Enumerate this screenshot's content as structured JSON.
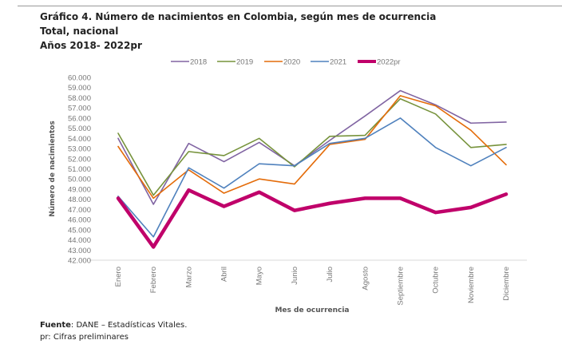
{
  "header": {
    "title": "Gráfico 4. Número de nacimientos en Colombia, según mes de ocurrencia",
    "subtitle1": "Total, nacional",
    "subtitle2": "Años 2018- 2022pr"
  },
  "footer": {
    "source_label": "Fuente",
    "source_text": ": DANE – Estadísticas Vitales.",
    "note": "pr: Cifras preliminares"
  },
  "chart_data": {
    "type": "line",
    "xlabel": "Mes de ocurrencia",
    "ylabel": "Número de nacimientos",
    "ylim": [
      42000,
      60000
    ],
    "ytick_step": 1000,
    "grid": false,
    "legend_position": "top",
    "categories": [
      "Enero",
      "Febrero",
      "Marzo",
      "Abril",
      "Mayo",
      "Junio",
      "Julio",
      "Agosto",
      "Septiembre",
      "Octubre",
      "Noviembre",
      "Diciembre"
    ],
    "series": [
      {
        "name": "2018",
        "color": "#8064A2",
        "values": [
          54000,
          47500,
          53500,
          51700,
          53600,
          51300,
          53800,
          56200,
          58700,
          57300,
          55500,
          55600
        ]
      },
      {
        "name": "2019",
        "color": "#77933C",
        "values": [
          54500,
          48400,
          52700,
          52300,
          54000,
          51200,
          54200,
          54300,
          57900,
          56400,
          53100,
          53400
        ]
      },
      {
        "name": "2020",
        "color": "#E46C0A",
        "values": [
          53200,
          48100,
          50900,
          48600,
          50000,
          49500,
          53400,
          53900,
          58200,
          57200,
          54800,
          51400
        ]
      },
      {
        "name": "2021",
        "color": "#4F81BD",
        "values": [
          48300,
          44300,
          51100,
          49100,
          51500,
          51300,
          53500,
          54000,
          56000,
          53100,
          51300,
          53100
        ]
      },
      {
        "name": "2022pr",
        "color": "#C0006A",
        "values": [
          48100,
          43300,
          48900,
          47300,
          48700,
          46900,
          47600,
          48100,
          48100,
          46700,
          47200,
          48500
        ]
      }
    ]
  }
}
